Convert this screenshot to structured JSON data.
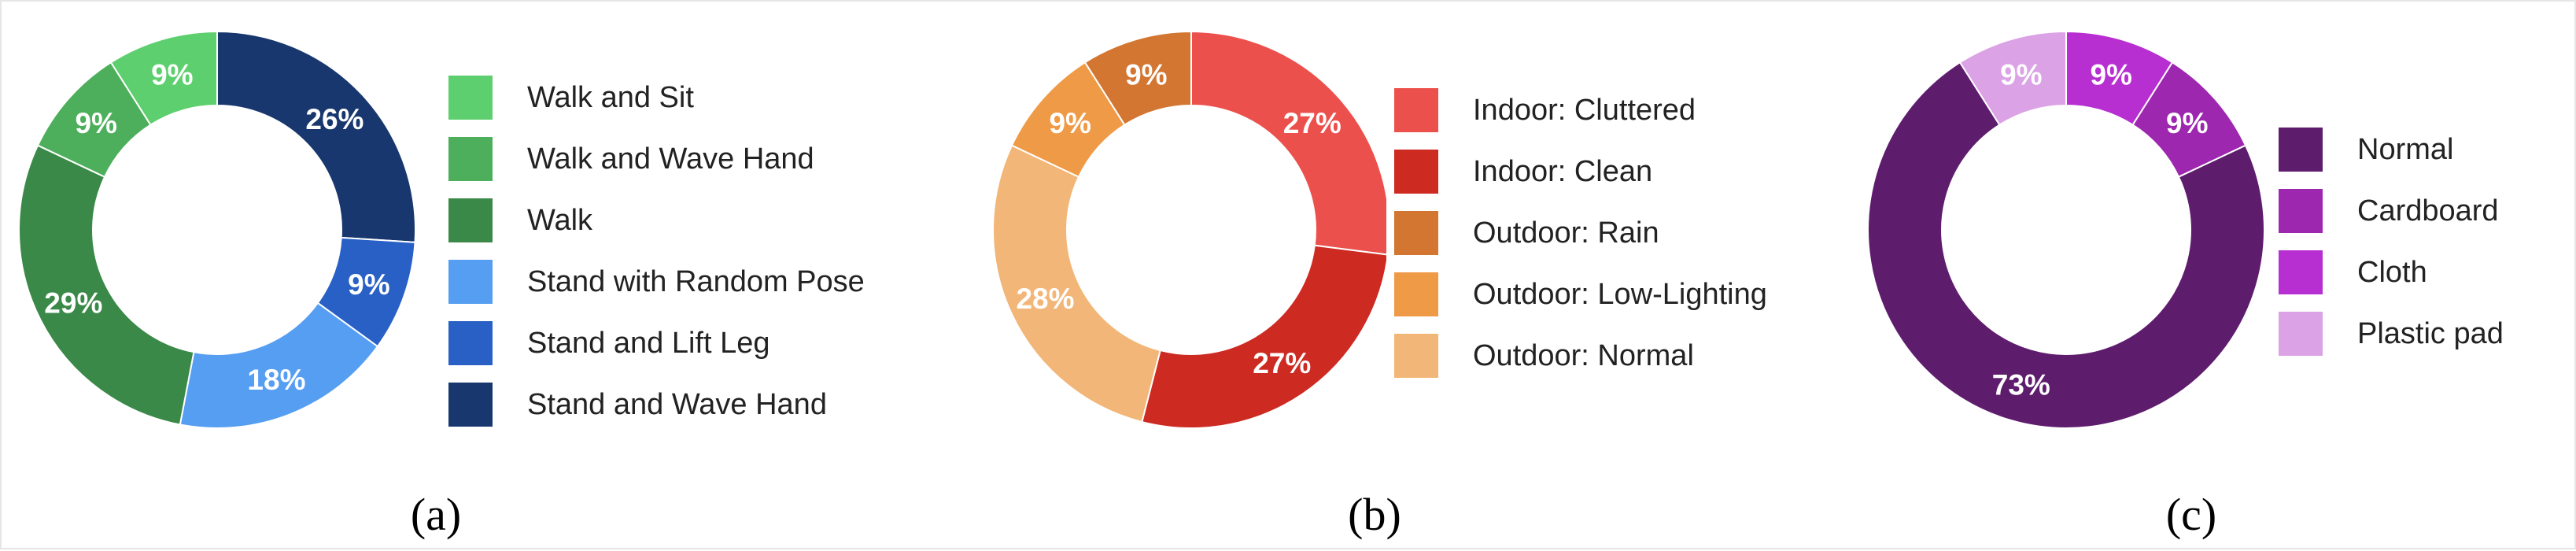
{
  "chart_data": [
    {
      "type": "pie",
      "caption": "(a)",
      "slices": [
        {
          "label": "Stand and Wave Hand",
          "value": 26,
          "display": "26%",
          "color": "#17376e"
        },
        {
          "label": "Stand and Lift Leg",
          "value": 9,
          "display": "9%",
          "color": "#2960c6"
        },
        {
          "label": "Stand with Random Pose",
          "value": 18,
          "display": "18%",
          "color": "#569ef2"
        },
        {
          "label": "Walk",
          "value": 29,
          "display": "29%",
          "color": "#3a8948"
        },
        {
          "label": "Walk and Wave Hand",
          "value": 9,
          "display": "9%",
          "color": "#4daf5b"
        },
        {
          "label": "Walk and Sit",
          "value": 9,
          "display": "9%",
          "color": "#5ecf6e"
        }
      ],
      "legend": [
        "Walk and Sit",
        "Walk and Wave Hand",
        "Walk",
        "Stand with Random Pose",
        "Stand and Lift Leg",
        "Stand and Wave Hand"
      ],
      "legend_colors": [
        "#5ecf6e",
        "#4daf5b",
        "#3a8948",
        "#569ef2",
        "#2960c6",
        "#17376e"
      ]
    },
    {
      "type": "pie",
      "caption": "(b)",
      "slices": [
        {
          "label": "Indoor: Cluttered",
          "value": 27,
          "display": "27%",
          "color": "#ec504c"
        },
        {
          "label": "Indoor: Clean",
          "value": 27,
          "display": "27%",
          "color": "#cd2a22"
        },
        {
          "label": "Outdoor: Normal",
          "value": 28,
          "display": "28%",
          "color": "#f2b778"
        },
        {
          "label": "Outdoor: Low-Lighting",
          "value": 9,
          "display": "9%",
          "color": "#ef9a46"
        },
        {
          "label": "Outdoor: Rain",
          "value": 9,
          "display": "9%",
          "color": "#d27631"
        }
      ],
      "legend": [
        "Indoor: Cluttered",
        "Indoor: Clean",
        "Outdoor: Rain",
        "Outdoor: Low-Lighting",
        "Outdoor: Normal"
      ],
      "legend_colors": [
        "#ec504c",
        "#cd2a22",
        "#d27631",
        "#ef9a46",
        "#f2b778"
      ]
    },
    {
      "type": "pie",
      "caption": "(c)",
      "slices": [
        {
          "label": "Cloth",
          "value": 9,
          "display": "9%",
          "color": "#b72ed1"
        },
        {
          "label": "Cardboard",
          "value": 9,
          "display": "9%",
          "color": "#9e27b0"
        },
        {
          "label": "Normal",
          "value": 73,
          "display": "73%",
          "color": "#5e1c6d"
        },
        {
          "label": "Plastic pad",
          "value": 9,
          "display": "9%",
          "color": "#dba2e6"
        }
      ],
      "legend": [
        "Normal",
        "Cardboard",
        "Cloth",
        "Plastic pad"
      ],
      "legend_colors": [
        "#5e1c6d",
        "#9e27b0",
        "#b72ed1",
        "#dba2e6"
      ]
    }
  ]
}
